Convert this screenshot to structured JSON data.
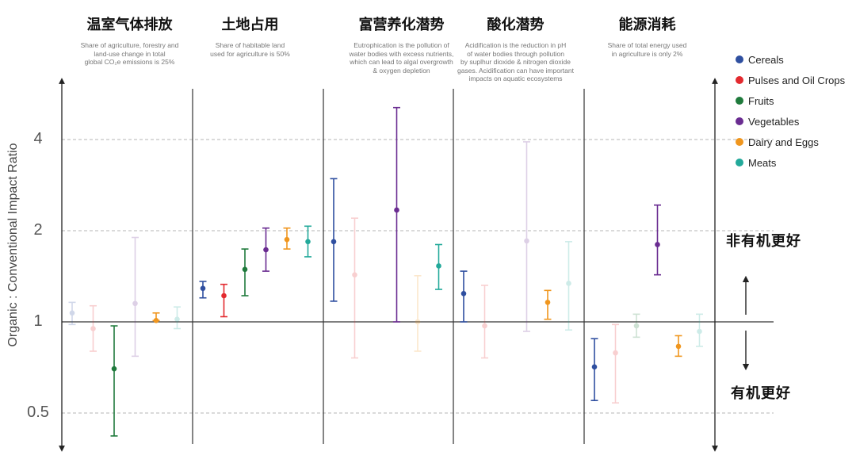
{
  "chart_data": {
    "type": "error-bar",
    "ylabel": "Organic : Conventional Impact Ratio",
    "yscale": "log2",
    "ylim": [
      0.43,
      6.0
    ],
    "yticks": [
      {
        "value": 0.5,
        "label": "0.5"
      },
      {
        "value": 1,
        "label": "1"
      },
      {
        "value": 2,
        "label": "2"
      },
      {
        "value": 4,
        "label": "4"
      }
    ],
    "grid": true,
    "legend_position": "top-right",
    "series_colors": {
      "Cereals": "#2f4fa0",
      "Pulses and Oil Crops": "#e32a2f",
      "Fruits": "#1f7a3c",
      "Vegetables": "#6a2c91",
      "Dairy and Eggs": "#f0961e",
      "Meats": "#22a99a"
    },
    "panels": [
      {
        "title": "温室气体排放",
        "description": "Share of agriculture, forestry and\nland-use change in total\nglobal CO₂e emissions is 25%",
        "points": [
          {
            "series": "Cereals",
            "value": 1.07,
            "low": 0.98,
            "high": 1.16,
            "faded": true
          },
          {
            "series": "Pulses and Oil Crops",
            "value": 0.95,
            "low": 0.8,
            "high": 1.13,
            "faded": true
          },
          {
            "series": "Fruits",
            "value": 0.7,
            "low": 0.42,
            "high": 0.97,
            "faded": false
          },
          {
            "series": "Vegetables",
            "value": 1.15,
            "low": 0.77,
            "high": 1.9,
            "faded": true
          },
          {
            "series": "Dairy and Eggs",
            "value": 1.01,
            "low": 1.01,
            "high": 1.07,
            "faded": false
          },
          {
            "series": "Meats",
            "value": 1.02,
            "low": 0.95,
            "high": 1.12,
            "faded": true
          }
        ]
      },
      {
        "title": "土地占用",
        "description": "Share of habitable land\nused for agriculture is 50%",
        "points": [
          {
            "series": "Cereals",
            "value": 1.29,
            "low": 1.2,
            "high": 1.36,
            "faded": false
          },
          {
            "series": "Pulses and Oil Crops",
            "value": 1.22,
            "low": 1.04,
            "high": 1.33,
            "faded": false
          },
          {
            "series": "Fruits",
            "value": 1.49,
            "low": 1.22,
            "high": 1.74,
            "faded": false
          },
          {
            "series": "Vegetables",
            "value": 1.73,
            "low": 1.47,
            "high": 2.04,
            "faded": false
          },
          {
            "series": "Dairy and Eggs",
            "value": 1.87,
            "low": 1.74,
            "high": 2.04,
            "faded": false
          },
          {
            "series": "Meats",
            "value": 1.84,
            "low": 1.64,
            "high": 2.07,
            "faded": false
          }
        ]
      },
      {
        "title": "富营养化潜势",
        "description": "Eutrophication is the pollution of\nwater bodies with excess nutrients,\nwhich can lead to algal overgrowth\n& oxygen depletion",
        "points": [
          {
            "series": "Cereals",
            "value": 1.84,
            "low": 1.17,
            "high": 2.97,
            "faded": false
          },
          {
            "series": "Pulses and Oil Crops",
            "value": 1.43,
            "low": 0.76,
            "high": 2.2,
            "faded": true
          },
          {
            "series": "Fruits",
            "value": null,
            "low": null,
            "high": null,
            "faded": true
          },
          {
            "series": "Vegetables",
            "value": 2.34,
            "low": 1.0,
            "high": 5.1,
            "faded": false
          },
          {
            "series": "Dairy and Eggs",
            "value": 1.0,
            "low": 0.8,
            "high": 1.42,
            "faded": true
          },
          {
            "series": "Meats",
            "value": 1.53,
            "low": 1.28,
            "high": 1.8,
            "faded": false
          }
        ]
      },
      {
        "title": "酸化潜势",
        "description": "Acidification is the reduction in pH\nof water bodies through pollution\nby suplhur dioxide & nitrogen dioxide\ngases. Acidification can have important\nimpacts on aquatic ecosystems",
        "points": [
          {
            "series": "Cereals",
            "value": 1.24,
            "low": 1.0,
            "high": 1.47,
            "faded": false
          },
          {
            "series": "Pulses and Oil Crops",
            "value": 0.97,
            "low": 0.76,
            "high": 1.32,
            "faded": true
          },
          {
            "series": "Fruits",
            "value": null,
            "low": null,
            "high": null,
            "faded": true
          },
          {
            "series": "Vegetables",
            "value": 1.85,
            "low": 0.93,
            "high": 3.93,
            "faded": true
          },
          {
            "series": "Dairy and Eggs",
            "value": 1.16,
            "low": 1.02,
            "high": 1.27,
            "faded": false
          },
          {
            "series": "Meats",
            "value": 1.34,
            "low": 0.94,
            "high": 1.84,
            "faded": true
          }
        ]
      },
      {
        "title": "能源消耗",
        "description": "Share of total energy used\nin agriculture is only 2%",
        "points": [
          {
            "series": "Cereals",
            "value": 0.71,
            "low": 0.55,
            "high": 0.88,
            "faded": false
          },
          {
            "series": "Pulses and Oil Crops",
            "value": 0.79,
            "low": 0.54,
            "high": 0.98,
            "faded": true
          },
          {
            "series": "Fruits",
            "value": 0.97,
            "low": 0.89,
            "high": 1.06,
            "faded": true
          },
          {
            "series": "Vegetables",
            "value": 1.8,
            "low": 1.43,
            "high": 2.43,
            "faded": false
          },
          {
            "series": "Dairy and Eggs",
            "value": 0.83,
            "low": 0.77,
            "high": 0.9,
            "faded": false
          },
          {
            "series": "Meats",
            "value": 0.93,
            "low": 0.83,
            "high": 1.06,
            "faded": true
          }
        ]
      }
    ],
    "annotations": {
      "above": "非有机更好",
      "below": "有机更好"
    }
  }
}
